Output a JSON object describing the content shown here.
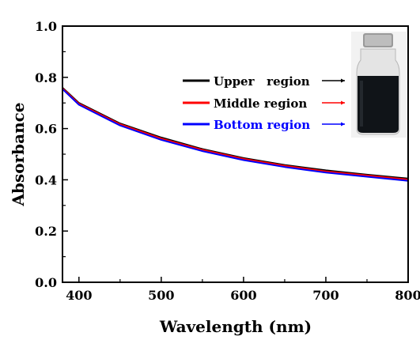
{
  "chart_data": {
    "type": "line",
    "title": "",
    "xlabel": "Wavelength (nm)",
    "ylabel": "Absorbance",
    "xlim": [
      380,
      800
    ],
    "ylim": [
      0.0,
      1.0
    ],
    "x_ticks": [
      "400",
      "500",
      "600",
      "700",
      "800"
    ],
    "y_ticks": [
      "0.0",
      "0.2",
      "0.4",
      "0.6",
      "0.8",
      "1.0"
    ],
    "grid": false,
    "legend_position": "top-right",
    "x": [
      380,
      400,
      450,
      500,
      550,
      600,
      650,
      700,
      750,
      800
    ],
    "series": [
      {
        "name": "Upper   region",
        "color": "#000000",
        "values": [
          0.76,
          0.7,
          0.62,
          0.565,
          0.52,
          0.485,
          0.458,
          0.437,
          0.42,
          0.405
        ]
      },
      {
        "name": "Middle region",
        "color": "#ff0000",
        "values": [
          0.757,
          0.697,
          0.617,
          0.561,
          0.517,
          0.482,
          0.455,
          0.433,
          0.417,
          0.401
        ]
      },
      {
        "name": "Bottom region",
        "color": "#0000ff",
        "values": [
          0.754,
          0.693,
          0.612,
          0.556,
          0.512,
          0.477,
          0.45,
          0.428,
          0.412,
          0.396
        ]
      }
    ],
    "inset": {
      "icon": "vial-photo-icon"
    }
  }
}
